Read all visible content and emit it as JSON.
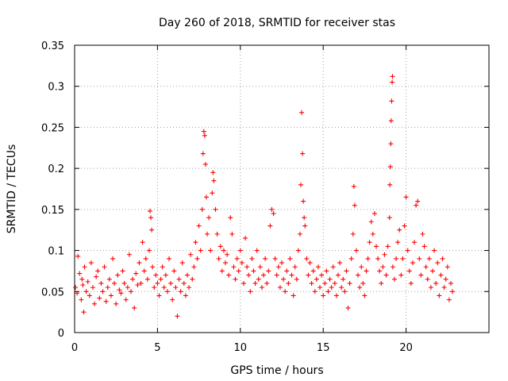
{
  "chart_data": {
    "type": "scatter",
    "title": "Day 260 of 2018, SRMTID for receiver stas",
    "xlabel": "GPS time / hours",
    "ylabel": "SRMTID / TECUs",
    "xlim": [
      0,
      25
    ],
    "ylim": [
      0,
      0.35
    ],
    "xticks": [
      0,
      5,
      10,
      15,
      20
    ],
    "xtick_labels": [
      "0",
      "5",
      "10",
      "15",
      "20"
    ],
    "yticks": [
      0,
      0.05,
      0.1,
      0.15,
      0.2,
      0.25,
      0.3,
      0.35
    ],
    "ytick_labels": [
      "0",
      "0.05",
      "0.1",
      "0.15",
      "0.2",
      "0.25",
      "0.3",
      "0.35"
    ],
    "grid": true,
    "marker": "+",
    "color": "#ff0000",
    "series": [
      {
        "name": "SRMTID",
        "points": [
          [
            0.05,
            0.055
          ],
          [
            0.15,
            0.048
          ],
          [
            0.2,
            0.093
          ],
          [
            0.3,
            0.072
          ],
          [
            0.4,
            0.04
          ],
          [
            0.45,
            0.065
          ],
          [
            0.5,
            0.058
          ],
          [
            0.55,
            0.025
          ],
          [
            0.6,
            0.08
          ],
          [
            0.7,
            0.05
          ],
          [
            0.8,
            0.062
          ],
          [
            0.9,
            0.045
          ],
          [
            1.0,
            0.085
          ],
          [
            1.1,
            0.055
          ],
          [
            1.2,
            0.035
          ],
          [
            1.3,
            0.068
          ],
          [
            1.4,
            0.075
          ],
          [
            1.5,
            0.042
          ],
          [
            1.6,
            0.06
          ],
          [
            1.7,
            0.05
          ],
          [
            1.8,
            0.08
          ],
          [
            1.9,
            0.038
          ],
          [
            2.0,
            0.055
          ],
          [
            2.1,
            0.065
          ],
          [
            2.2,
            0.045
          ],
          [
            2.3,
            0.09
          ],
          [
            2.4,
            0.06
          ],
          [
            2.5,
            0.035
          ],
          [
            2.6,
            0.07
          ],
          [
            2.7,
            0.052
          ],
          [
            2.8,
            0.048
          ],
          [
            2.9,
            0.075
          ],
          [
            3.0,
            0.06
          ],
          [
            3.1,
            0.04
          ],
          [
            3.2,
            0.055
          ],
          [
            3.3,
            0.095
          ],
          [
            3.4,
            0.05
          ],
          [
            3.5,
            0.065
          ],
          [
            3.6,
            0.03
          ],
          [
            3.7,
            0.072
          ],
          [
            3.8,
            0.058
          ],
          [
            3.9,
            0.085
          ],
          [
            4.0,
            0.06
          ],
          [
            4.1,
            0.11
          ],
          [
            4.2,
            0.075
          ],
          [
            4.3,
            0.09
          ],
          [
            4.4,
            0.065
          ],
          [
            4.5,
            0.1
          ],
          [
            4.55,
            0.148
          ],
          [
            4.6,
            0.14
          ],
          [
            4.65,
            0.125
          ],
          [
            4.7,
            0.08
          ],
          [
            4.8,
            0.055
          ],
          [
            4.9,
            0.07
          ],
          [
            5.0,
            0.06
          ],
          [
            5.1,
            0.045
          ],
          [
            5.2,
            0.065
          ],
          [
            5.3,
            0.08
          ],
          [
            5.4,
            0.055
          ],
          [
            5.5,
            0.07
          ],
          [
            5.6,
            0.05
          ],
          [
            5.7,
            0.09
          ],
          [
            5.8,
            0.06
          ],
          [
            5.9,
            0.04
          ],
          [
            6.0,
            0.075
          ],
          [
            6.1,
            0.055
          ],
          [
            6.2,
            0.02
          ],
          [
            6.3,
            0.065
          ],
          [
            6.4,
            0.05
          ],
          [
            6.5,
            0.085
          ],
          [
            6.6,
            0.06
          ],
          [
            6.7,
            0.045
          ],
          [
            6.8,
            0.07
          ],
          [
            6.9,
            0.055
          ],
          [
            7.0,
            0.095
          ],
          [
            7.1,
            0.065
          ],
          [
            7.2,
            0.08
          ],
          [
            7.3,
            0.11
          ],
          [
            7.4,
            0.09
          ],
          [
            7.5,
            0.13
          ],
          [
            7.6,
            0.1
          ],
          [
            7.7,
            0.15
          ],
          [
            7.75,
            0.218
          ],
          [
            7.8,
            0.245
          ],
          [
            7.85,
            0.24
          ],
          [
            7.9,
            0.205
          ],
          [
            7.95,
            0.165
          ],
          [
            8.0,
            0.12
          ],
          [
            8.1,
            0.14
          ],
          [
            8.2,
            0.1
          ],
          [
            8.3,
            0.17
          ],
          [
            8.35,
            0.195
          ],
          [
            8.4,
            0.185
          ],
          [
            8.5,
            0.15
          ],
          [
            8.6,
            0.12
          ],
          [
            8.7,
            0.09
          ],
          [
            8.8,
            0.105
          ],
          [
            8.9,
            0.075
          ],
          [
            9.0,
            0.1
          ],
          [
            9.1,
            0.085
          ],
          [
            9.2,
            0.095
          ],
          [
            9.3,
            0.07
          ],
          [
            9.4,
            0.14
          ],
          [
            9.5,
            0.12
          ],
          [
            9.6,
            0.08
          ],
          [
            9.7,
            0.065
          ],
          [
            9.8,
            0.09
          ],
          [
            9.9,
            0.075
          ],
          [
            10.0,
            0.1
          ],
          [
            10.1,
            0.085
          ],
          [
            10.2,
            0.06
          ],
          [
            10.3,
            0.115
          ],
          [
            10.4,
            0.08
          ],
          [
            10.5,
            0.07
          ],
          [
            10.6,
            0.05
          ],
          [
            10.7,
            0.09
          ],
          [
            10.8,
            0.075
          ],
          [
            10.9,
            0.06
          ],
          [
            11.0,
            0.1
          ],
          [
            11.1,
            0.065
          ],
          [
            11.2,
            0.08
          ],
          [
            11.3,
            0.055
          ],
          [
            11.4,
            0.07
          ],
          [
            11.5,
            0.09
          ],
          [
            11.6,
            0.06
          ],
          [
            11.7,
            0.075
          ],
          [
            11.8,
            0.13
          ],
          [
            11.9,
            0.15
          ],
          [
            12.0,
            0.145
          ],
          [
            12.1,
            0.09
          ],
          [
            12.2,
            0.07
          ],
          [
            12.3,
            0.08
          ],
          [
            12.4,
            0.055
          ],
          [
            12.5,
            0.085
          ],
          [
            12.6,
            0.065
          ],
          [
            12.7,
            0.05
          ],
          [
            12.8,
            0.075
          ],
          [
            12.9,
            0.06
          ],
          [
            13.0,
            0.09
          ],
          [
            13.1,
            0.07
          ],
          [
            13.2,
            0.045
          ],
          [
            13.3,
            0.08
          ],
          [
            13.4,
            0.065
          ],
          [
            13.5,
            0.1
          ],
          [
            13.6,
            0.12
          ],
          [
            13.65,
            0.18
          ],
          [
            13.7,
            0.268
          ],
          [
            13.75,
            0.218
          ],
          [
            13.8,
            0.16
          ],
          [
            13.85,
            0.14
          ],
          [
            13.9,
            0.13
          ],
          [
            14.0,
            0.09
          ],
          [
            14.1,
            0.07
          ],
          [
            14.2,
            0.085
          ],
          [
            14.3,
            0.06
          ],
          [
            14.4,
            0.075
          ],
          [
            14.5,
            0.05
          ],
          [
            14.6,
            0.065
          ],
          [
            14.7,
            0.08
          ],
          [
            14.8,
            0.055
          ],
          [
            14.9,
            0.07
          ],
          [
            15.0,
            0.045
          ],
          [
            15.1,
            0.06
          ],
          [
            15.2,
            0.075
          ],
          [
            15.3,
            0.05
          ],
          [
            15.4,
            0.065
          ],
          [
            15.5,
            0.055
          ],
          [
            15.6,
            0.08
          ],
          [
            15.7,
            0.06
          ],
          [
            15.8,
            0.045
          ],
          [
            15.9,
            0.07
          ],
          [
            16.0,
            0.085
          ],
          [
            16.1,
            0.055
          ],
          [
            16.2,
            0.065
          ],
          [
            16.3,
            0.05
          ],
          [
            16.4,
            0.075
          ],
          [
            16.5,
            0.03
          ],
          [
            16.6,
            0.06
          ],
          [
            16.7,
            0.09
          ],
          [
            16.8,
            0.12
          ],
          [
            16.85,
            0.178
          ],
          [
            16.9,
            0.155
          ],
          [
            17.0,
            0.1
          ],
          [
            17.1,
            0.07
          ],
          [
            17.2,
            0.055
          ],
          [
            17.3,
            0.08
          ],
          [
            17.4,
            0.06
          ],
          [
            17.5,
            0.045
          ],
          [
            17.6,
            0.075
          ],
          [
            17.7,
            0.09
          ],
          [
            17.8,
            0.11
          ],
          [
            17.9,
            0.135
          ],
          [
            18.0,
            0.12
          ],
          [
            18.1,
            0.145
          ],
          [
            18.2,
            0.105
          ],
          [
            18.3,
            0.09
          ],
          [
            18.4,
            0.075
          ],
          [
            18.5,
            0.06
          ],
          [
            18.6,
            0.08
          ],
          [
            18.7,
            0.095
          ],
          [
            18.8,
            0.07
          ],
          [
            18.9,
            0.105
          ],
          [
            19.0,
            0.14
          ],
          [
            19.02,
            0.18
          ],
          [
            19.05,
            0.202
          ],
          [
            19.08,
            0.23
          ],
          [
            19.1,
            0.258
          ],
          [
            19.13,
            0.282
          ],
          [
            19.16,
            0.305
          ],
          [
            19.18,
            0.312
          ],
          [
            19.2,
            0.08
          ],
          [
            19.3,
            0.065
          ],
          [
            19.4,
            0.09
          ],
          [
            19.5,
            0.11
          ],
          [
            19.6,
            0.125
          ],
          [
            19.7,
            0.07
          ],
          [
            19.8,
            0.09
          ],
          [
            19.9,
            0.13
          ],
          [
            20.0,
            0.165
          ],
          [
            20.1,
            0.1
          ],
          [
            20.2,
            0.075
          ],
          [
            20.3,
            0.06
          ],
          [
            20.4,
            0.085
          ],
          [
            20.5,
            0.11
          ],
          [
            20.6,
            0.155
          ],
          [
            20.7,
            0.16
          ],
          [
            20.8,
            0.09
          ],
          [
            20.9,
            0.07
          ],
          [
            21.0,
            0.12
          ],
          [
            21.1,
            0.105
          ],
          [
            21.2,
            0.08
          ],
          [
            21.3,
            0.065
          ],
          [
            21.4,
            0.09
          ],
          [
            21.5,
            0.055
          ],
          [
            21.6,
            0.075
          ],
          [
            21.7,
            0.1
          ],
          [
            21.8,
            0.06
          ],
          [
            21.9,
            0.085
          ],
          [
            22.0,
            0.045
          ],
          [
            22.1,
            0.07
          ],
          [
            22.2,
            0.09
          ],
          [
            22.3,
            0.055
          ],
          [
            22.4,
            0.065
          ],
          [
            22.5,
            0.08
          ],
          [
            22.6,
            0.04
          ],
          [
            22.7,
            0.06
          ],
          [
            22.8,
            0.05
          ]
        ]
      }
    ]
  }
}
